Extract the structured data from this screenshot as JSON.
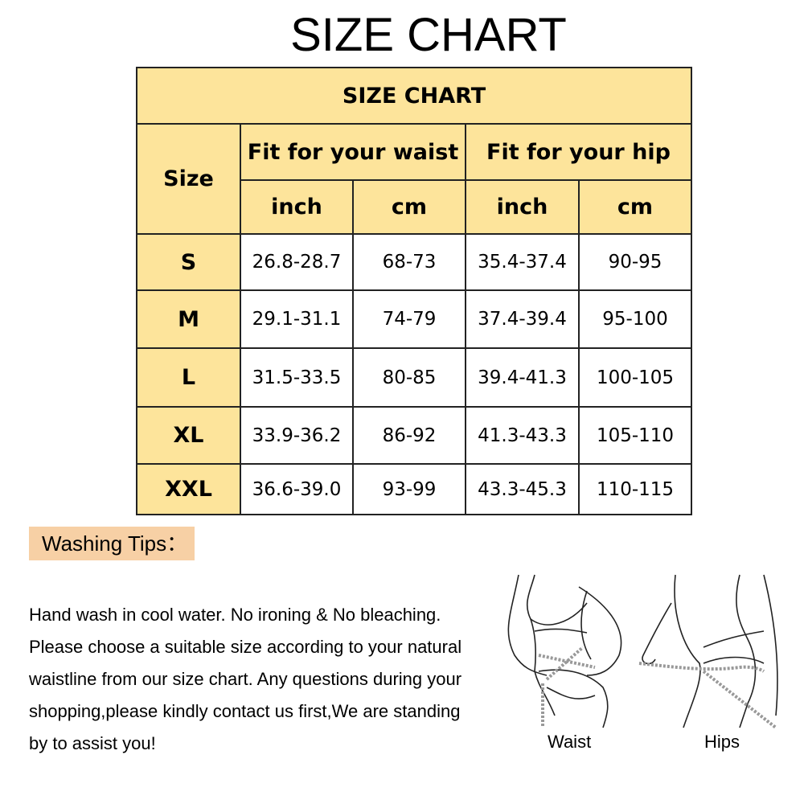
{
  "title": "SIZE CHART",
  "table": {
    "caption": "SIZE CHART",
    "size_header": "Size",
    "group_headers": [
      "Fit for  your waist",
      "Fit for  your hip"
    ],
    "unit_headers": [
      "inch",
      "cm",
      "inch",
      "cm"
    ],
    "rows": [
      {
        "size": "S",
        "cells": [
          "26.8-28.7",
          "68-73",
          "35.4-37.4",
          "90-95"
        ]
      },
      {
        "size": "M",
        "cells": [
          "29.1-31.1",
          "74-79",
          "37.4-39.4",
          "95-100"
        ]
      },
      {
        "size": "L",
        "cells": [
          "31.5-33.5",
          "80-85",
          "39.4-41.3",
          "100-105"
        ]
      },
      {
        "size": "XL",
        "cells": [
          "33.9-36.2",
          "86-92",
          "41.3-43.3",
          "105-110"
        ]
      },
      {
        "size": "XXL",
        "cells": [
          "36.6-39.0",
          "93-99",
          "43.3-45.3",
          "110-115"
        ]
      }
    ]
  },
  "tips": {
    "heading": "Washing Tips：",
    "lines": [
      "Hand wash in cool water. No ironing & No bleaching.",
      "Please choose a suitable size according to your natural",
      "waistline from our size chart. Any questions during your",
      "shopping,please kindly contact us first,We are standing",
      "by to assist you!"
    ]
  },
  "illustration": {
    "labels": [
      "Waist",
      "Hips"
    ]
  },
  "colors": {
    "header_fill": "#fde49b",
    "tips_fill": "#f7d0a5"
  }
}
